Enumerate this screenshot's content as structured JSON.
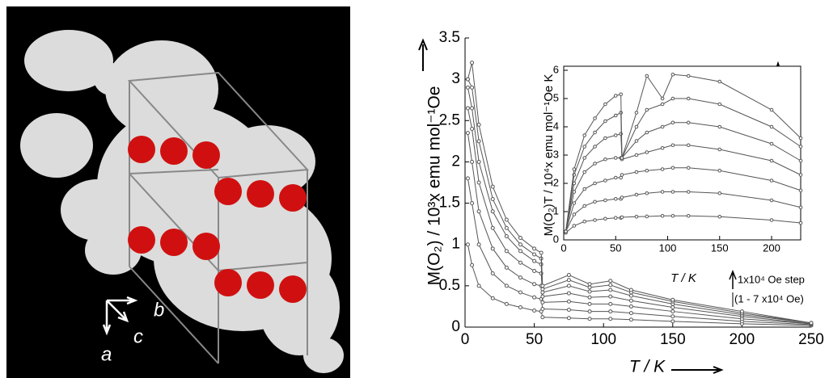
{
  "crystal": {
    "axis_labels": [
      "a",
      "b",
      "c"
    ]
  },
  "chart_data": [
    {
      "type": "line",
      "x_label": "T / K",
      "y_label": "M(O₂) / 10³x emu mol⁻¹Oe",
      "x": [
        2,
        5,
        10,
        20,
        30,
        40,
        50,
        55,
        56,
        75,
        90,
        105,
        120,
        150,
        200,
        250
      ],
      "xlim": [
        0,
        250
      ],
      "xticks": [
        0,
        50,
        100,
        150,
        200,
        250
      ],
      "ylim": [
        0,
        3.5
      ],
      "yticks": [
        0,
        0.5,
        1,
        1.5,
        2,
        2.5,
        3,
        3.5
      ],
      "series": [
        {
          "color": "#555555",
          "values": [
            1.0,
            0.75,
            0.5,
            0.35,
            0.28,
            0.24,
            0.2,
            0.19,
            0.12,
            0.11,
            0.1,
            0.1,
            0.09,
            0.07,
            0.04,
            0.02
          ]
        },
        {
          "color": "#555555",
          "values": [
            1.8,
            1.5,
            1.0,
            0.65,
            0.5,
            0.42,
            0.36,
            0.34,
            0.22,
            0.21,
            0.19,
            0.19,
            0.17,
            0.13,
            0.07,
            0.03
          ]
        },
        {
          "color": "#555555",
          "values": [
            2.35,
            2.0,
            1.4,
            0.95,
            0.72,
            0.6,
            0.52,
            0.5,
            0.3,
            0.31,
            0.28,
            0.28,
            0.25,
            0.19,
            0.1,
            0.04
          ]
        },
        {
          "color": "#555555",
          "values": [
            2.65,
            2.4,
            1.75,
            1.2,
            0.92,
            0.78,
            0.68,
            0.65,
            0.37,
            0.41,
            0.36,
            0.37,
            0.32,
            0.24,
            0.13,
            0.04
          ]
        },
        {
          "color": "#555555",
          "values": [
            2.9,
            2.65,
            2.0,
            1.4,
            1.1,
            0.92,
            0.8,
            0.76,
            0.42,
            0.5,
            0.43,
            0.45,
            0.38,
            0.28,
            0.15,
            0.05
          ]
        },
        {
          "color": "#555555",
          "values": [
            3.0,
            2.9,
            2.25,
            1.55,
            1.2,
            1.0,
            0.88,
            0.83,
            0.46,
            0.57,
            0.48,
            0.51,
            0.42,
            0.31,
            0.17,
            0.05
          ]
        },
        {
          "color": "#555555",
          "values": [
            3.0,
            3.2,
            2.45,
            1.7,
            1.3,
            1.08,
            0.95,
            0.9,
            0.5,
            0.63,
            0.52,
            0.56,
            0.45,
            0.33,
            0.19,
            0.05
          ]
        }
      ]
    },
    {
      "type": "line",
      "x_label": "T / K",
      "y_label": "M(O₂)T / 10⁴x emu mol⁻¹Oe K",
      "annotations": [
        "1x10⁴ Oe step",
        "(1 - 7 x10⁴ Oe)"
      ],
      "x": [
        2,
        10,
        20,
        30,
        40,
        50,
        55,
        56,
        70,
        80,
        95,
        105,
        120,
        150,
        200,
        228
      ],
      "xlim": [
        0,
        228
      ],
      "xticks": [
        0,
        50,
        100,
        150,
        200
      ],
      "ylim": [
        0,
        6
      ],
      "yticks": [
        0,
        1,
        2,
        3,
        4,
        5,
        6
      ],
      "series": [
        {
          "color": "#555555",
          "values": [
            0.25,
            0.5,
            0.65,
            0.7,
            0.75,
            0.78,
            0.78,
            0.8,
            0.82,
            0.83,
            0.85,
            0.85,
            0.85,
            0.82,
            0.7,
            0.6
          ]
        },
        {
          "color": "#555555",
          "values": [
            0.3,
            0.9,
            1.2,
            1.35,
            1.4,
            1.45,
            1.45,
            1.5,
            1.6,
            1.65,
            1.7,
            1.7,
            1.7,
            1.65,
            1.4,
            1.15
          ]
        },
        {
          "color": "#555555",
          "values": [
            0.3,
            1.3,
            1.8,
            2.0,
            2.1,
            2.2,
            2.2,
            2.3,
            2.4,
            2.45,
            2.5,
            2.55,
            2.55,
            2.45,
            2.1,
            1.75
          ]
        },
        {
          "color": "#555555",
          "values": [
            0.3,
            1.7,
            2.4,
            2.7,
            2.85,
            2.9,
            2.9,
            2.85,
            3.0,
            3.1,
            3.25,
            3.35,
            3.35,
            3.2,
            2.8,
            2.3
          ]
        },
        {
          "color": "#555555",
          "values": [
            0.3,
            2.0,
            2.9,
            3.3,
            3.6,
            3.7,
            3.75,
            2.9,
            3.5,
            3.8,
            4.0,
            4.15,
            4.15,
            4.0,
            3.4,
            2.8
          ]
        },
        {
          "color": "#555555",
          "values": [
            0.3,
            2.3,
            3.3,
            3.8,
            4.2,
            4.4,
            4.5,
            2.9,
            4.0,
            4.6,
            4.8,
            5.0,
            5.0,
            4.8,
            4.0,
            3.3
          ]
        },
        {
          "color": "#555555",
          "values": [
            0.3,
            2.5,
            3.7,
            4.3,
            4.8,
            5.1,
            5.15,
            2.9,
            4.5,
            5.8,
            5.0,
            5.85,
            5.8,
            5.6,
            4.6,
            3.6
          ]
        }
      ]
    }
  ]
}
